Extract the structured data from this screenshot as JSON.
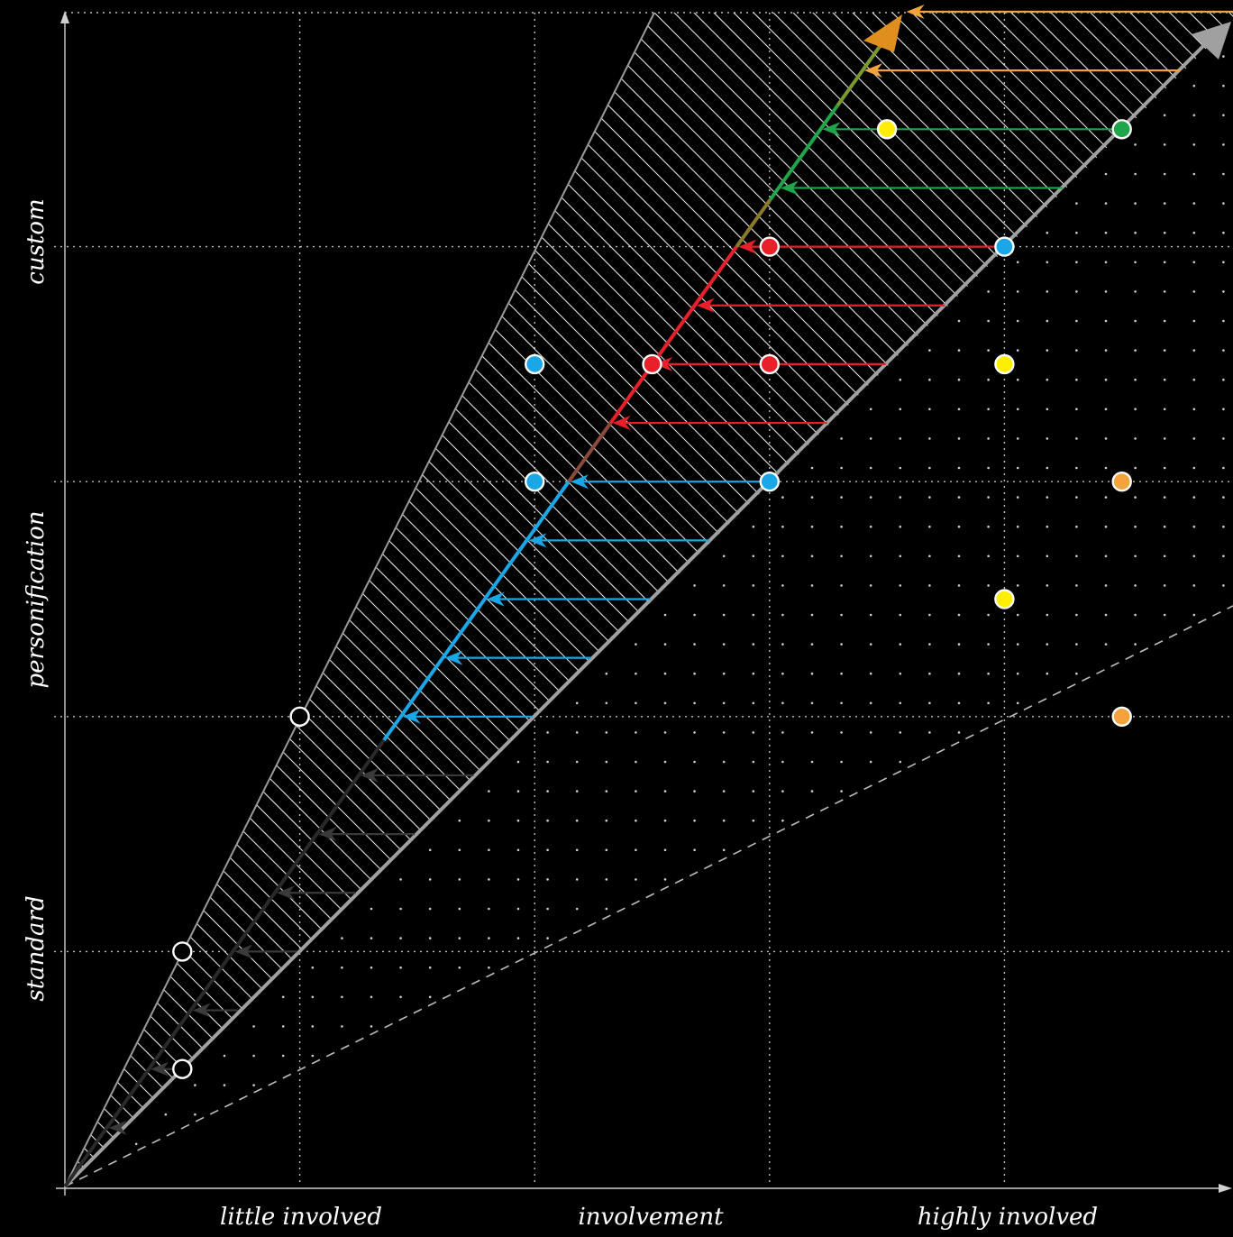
{
  "x_axis": {
    "labels": [
      "little involved",
      "involvement",
      "highly involved"
    ]
  },
  "y_axis": {
    "labels": [
      "standard",
      "personification",
      "custom"
    ]
  },
  "colors": {
    "background": "#000000",
    "grid": "#bdbdbd",
    "hatch": "#e6e6e6",
    "main_arrow": "#a0a0a0",
    "white_marker": "#ffffff",
    "blue": "#1aa7e8",
    "red": "#e8202a",
    "yellow": "#ffee00",
    "orange": "#f4a23c",
    "green": "#1fa64a",
    "dark": "#3a3a3a",
    "gold": "#e08f1e"
  },
  "markers": [
    {
      "x": 0.5,
      "y": 0.5,
      "color": "black"
    },
    {
      "x": 0.5,
      "y": 1.0,
      "color": "black"
    },
    {
      "x": 1.0,
      "y": 2.0,
      "color": "black"
    },
    {
      "x": 2.0,
      "y": 3.0,
      "color": "blue"
    },
    {
      "x": 2.0,
      "y": 3.5,
      "color": "blue"
    },
    {
      "x": 3.0,
      "y": 3.0,
      "color": "blue"
    },
    {
      "x": 4.0,
      "y": 4.0,
      "color": "blue"
    },
    {
      "x": 2.5,
      "y": 3.5,
      "color": "red"
    },
    {
      "x": 3.0,
      "y": 3.5,
      "color": "red"
    },
    {
      "x": 3.0,
      "y": 4.0,
      "color": "red"
    },
    {
      "x": 4.0,
      "y": 3.5,
      "color": "yellow"
    },
    {
      "x": 4.0,
      "y": 2.5,
      "color": "yellow"
    },
    {
      "x": 3.5,
      "y": 4.5,
      "color": "yellow"
    },
    {
      "x": 4.5,
      "y": 3.0,
      "color": "orange"
    },
    {
      "x": 4.5,
      "y": 2.0,
      "color": "orange"
    },
    {
      "x": 4.5,
      "y": 4.5,
      "color": "green"
    }
  ],
  "arrows": [
    {
      "y": 0.25,
      "color": "dark"
    },
    {
      "y": 0.5,
      "color": "dark"
    },
    {
      "y": 0.75,
      "color": "dark"
    },
    {
      "y": 1.0,
      "color": "dark"
    },
    {
      "y": 1.25,
      "color": "dark"
    },
    {
      "y": 1.5,
      "color": "dark"
    },
    {
      "y": 1.75,
      "color": "dark"
    },
    {
      "y": 2.0,
      "color": "blue"
    },
    {
      "y": 2.25,
      "color": "blue"
    },
    {
      "y": 2.5,
      "color": "blue"
    },
    {
      "y": 2.75,
      "color": "blue"
    },
    {
      "y": 3.0,
      "color": "blue"
    },
    {
      "y": 3.25,
      "color": "red"
    },
    {
      "y": 3.5,
      "color": "red"
    },
    {
      "y": 3.75,
      "color": "red"
    },
    {
      "y": 4.0,
      "color": "red"
    },
    {
      "y": 4.25,
      "color": "green"
    },
    {
      "y": 4.5,
      "color": "green"
    },
    {
      "y": 4.75,
      "color": "orange"
    },
    {
      "y": 5.0,
      "color": "orange"
    }
  ]
}
